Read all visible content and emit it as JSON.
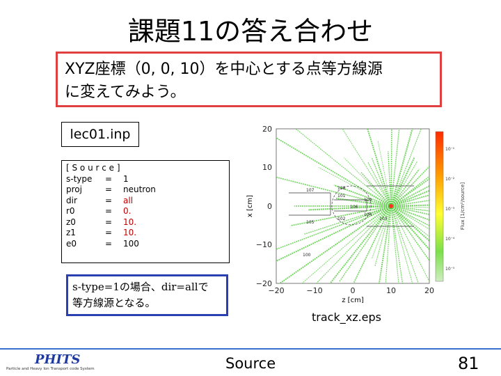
{
  "slide": {
    "title": "課題11の答え合わせ",
    "task_lines": [
      "XYZ座標（0, 0, 10）を中心とする点等方線源",
      "に変えてみよう。"
    ],
    "file_label": "lec01.inp",
    "source_block": {
      "header": "[ S o u r c e ]",
      "lines": [
        {
          "key": "s-type",
          "eq": "=",
          "val": "1"
        },
        {
          "key": "proj",
          "eq": "=",
          "val": "neutron"
        },
        {
          "key": "dir",
          "eq": "=",
          "val": "all"
        },
        {
          "key": "r0",
          "eq": "=",
          "val": "0."
        },
        {
          "key": "z0",
          "eq": "=",
          "val": "10."
        },
        {
          "key": "z1",
          "eq": "=",
          "val": "10."
        },
        {
          "key": "e0",
          "eq": "=",
          "val": "100"
        }
      ]
    },
    "note_lines": [
      "s-type=1の場合、dir=allで",
      "等方線源となる。"
    ],
    "caption": "track_xz.eps",
    "footer_center": "Source",
    "page_number": "81",
    "logo": {
      "main": "PHITS",
      "sub": "Particle and Heavy Ion Transport code System"
    }
  },
  "plot": {
    "xlabel": "z [cm]",
    "ylabel": "x [cm]",
    "colorbar_label": "Flux [1/cm²/source]",
    "xticks": [
      "−20",
      "−10",
      "0",
      "10",
      "20"
    ],
    "yticks": [
      "20",
      "10",
      "0",
      "−10",
      "−20"
    ],
    "colorbar_ticks": [
      "10⁻¹",
      "10⁻²",
      "10⁻³",
      "10⁻⁴",
      "10⁻⁵"
    ],
    "region_labels": [
      "101",
      "102",
      "103",
      "104",
      "105",
      "106",
      "107",
      "108",
      "109",
      "100"
    ],
    "source_point": {
      "z": 10,
      "x": 0
    },
    "colors": {
      "track": "#5fd04a",
      "source": "#ff3020"
    }
  }
}
